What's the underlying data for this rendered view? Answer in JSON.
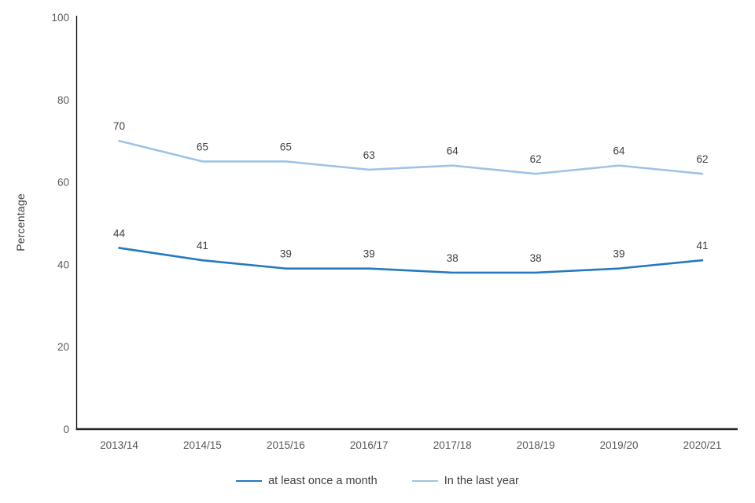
{
  "chart_data": {
    "type": "line",
    "title": "",
    "categories": [
      "2013/14",
      "2014/15",
      "2015/16",
      "2016/17",
      "2017/18",
      "2018/19",
      "2019/20",
      "2020/21"
    ],
    "series": [
      {
        "name": "at least once a month",
        "values": [
          44,
          41,
          39,
          39,
          38,
          38,
          39,
          41
        ],
        "color": "#2379bf"
      },
      {
        "name": "In the last year",
        "values": [
          70,
          65,
          65,
          63,
          64,
          62,
          64,
          62
        ],
        "color": "#9dc3e6"
      }
    ],
    "xlabel": "",
    "ylabel": "Percentage",
    "ylim": [
      0,
      100
    ],
    "yticks": [
      0,
      20,
      40,
      60,
      80,
      100
    ],
    "grid": false,
    "data_labels": true,
    "legend_position": "bottom"
  },
  "style": {
    "axis_color": "#262626",
    "tick_text_color": "#595959",
    "data_label_color": "#404040"
  }
}
